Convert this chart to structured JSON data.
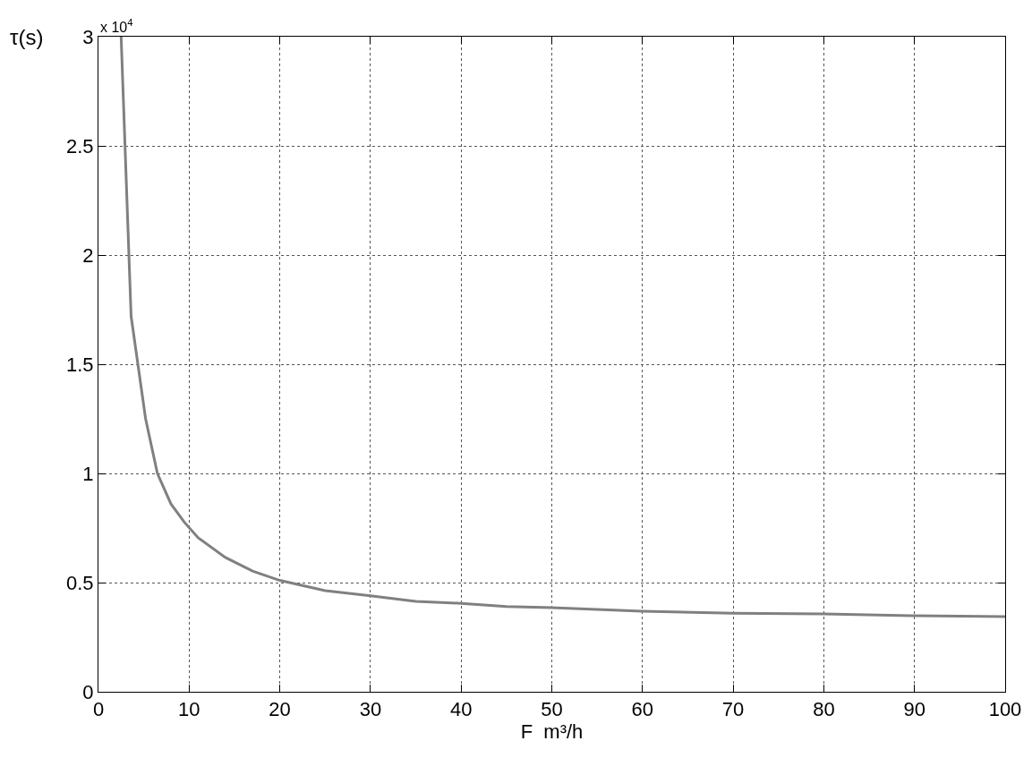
{
  "chart_data": {
    "type": "line",
    "xlabel": "F  m³/h",
    "ylabel": "τ(s)",
    "annotations": [
      "x 10$^{4}$"
    ],
    "x": [
      2.5,
      3.6,
      5.2,
      6.5,
      8,
      9.5,
      11,
      14,
      17,
      20,
      25,
      30,
      35,
      40,
      45,
      50,
      55,
      60,
      70,
      80,
      90,
      100
    ],
    "series": [
      {
        "color": "#808080",
        "values": [
          3.0,
          1.72,
          1.25,
          1.0,
          0.86,
          0.775,
          0.705,
          0.615,
          0.553,
          0.51,
          0.463,
          0.44,
          0.414,
          0.405,
          0.39,
          0.385,
          0.377,
          0.369,
          0.36,
          0.357,
          0.348,
          0.344
        ]
      }
    ],
    "xlim": [
      0,
      100
    ],
    "xticks": [
      0,
      10,
      20,
      30,
      40,
      50,
      60,
      70,
      80,
      90,
      100
    ],
    "ylim": [
      0,
      3
    ],
    "yticks": [
      0,
      0.5,
      1,
      1.5,
      2,
      2.5,
      3
    ],
    "grid": true,
    "marker": "none",
    "line_style": "solid",
    "legend": false
  }
}
